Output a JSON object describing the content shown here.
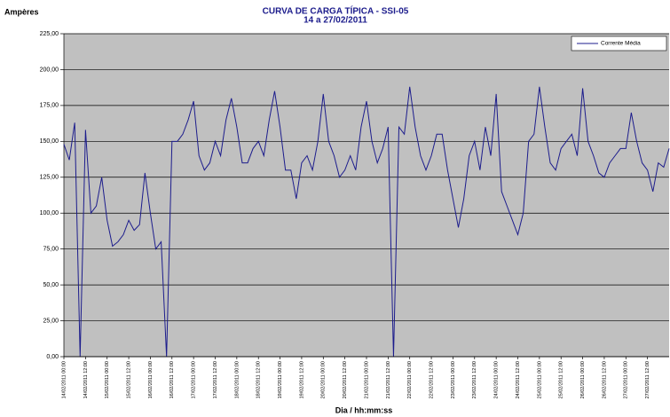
{
  "chart_data": {
    "type": "line",
    "title": "CURVA DE CARGA TÍPICA - SSI-05",
    "subtitle": "14 a 27/02/2011",
    "y_label": "Ampères",
    "x_label": "Dia / hh:mm:ss",
    "legend_position": "top-right",
    "grid": true,
    "background": "#c0c0c0",
    "categories": [
      "14/02/2011 00:00",
      null,
      null,
      null,
      "14/02/2011 12:00",
      null,
      null,
      null,
      "15/02/2011 00:00",
      null,
      null,
      null,
      "15/02/2011 12:00",
      null,
      null,
      null,
      "16/02/2011 00:00",
      null,
      null,
      null,
      "16/02/2011 12:00",
      null,
      null,
      null,
      "17/02/2011 00:00",
      null,
      null,
      null,
      "17/02/2011 12:00",
      null,
      null,
      null,
      "18/02/2011 00:00",
      null,
      null,
      null,
      "18/02/2011 12:00",
      null,
      null,
      null,
      "19/02/2011 00:00",
      null,
      null,
      null,
      "19/02/2011 12:00",
      null,
      null,
      null,
      "20/02/2011 00:00",
      null,
      null,
      null,
      "20/02/2011 12:00",
      null,
      null,
      null,
      "21/02/2011 00:00",
      null,
      null,
      null,
      "21/02/2011 12:00",
      null,
      null,
      null,
      "22/02/2011 00:00",
      null,
      null,
      null,
      "22/02/2011 12:00",
      null,
      null,
      null,
      "23/02/2011 00:00",
      null,
      null,
      null,
      "23/02/2011 12:00",
      null,
      null,
      null,
      "24/02/2011 00:00",
      null,
      null,
      null,
      "24/02/2011 12:00",
      null,
      null,
      null,
      "25/02/2011 00:00",
      null,
      null,
      null,
      "25/02/2011 12:00",
      null,
      null,
      null,
      "26/02/2011 00:00",
      null,
      null,
      null,
      "26/02/2011 12:00",
      null,
      null,
      null,
      "27/02/2011 00:00",
      null,
      null,
      null,
      "27/02/2011 12:00",
      null,
      null,
      null,
      null
    ],
    "series": [
      {
        "name": "Corrente Média",
        "color": "#1c1c8c",
        "values": [
          148,
          137,
          163,
          0,
          158,
          100,
          105,
          125,
          95,
          77,
          80,
          85,
          95,
          88,
          92,
          128,
          100,
          75,
          80,
          0,
          150,
          150,
          155,
          165,
          178,
          140,
          130,
          135,
          150,
          140,
          165,
          180,
          160,
          135,
          135,
          145,
          150,
          140,
          165,
          185,
          160,
          130,
          130,
          110,
          135,
          140,
          130,
          150,
          183,
          150,
          140,
          125,
          130,
          140,
          130,
          160,
          178,
          150,
          135,
          145,
          160,
          0,
          160,
          155,
          188,
          160,
          140,
          130,
          140,
          155,
          155,
          130,
          110,
          90,
          110,
          140,
          150,
          130,
          160,
          140,
          183,
          115,
          105,
          95,
          85,
          100,
          150,
          155,
          188,
          160,
          135,
          130,
          145,
          150,
          155,
          140,
          187,
          150,
          140,
          128,
          125,
          135,
          140,
          145,
          145,
          170,
          150,
          135,
          130,
          115,
          135,
          132,
          145
        ]
      }
    ],
    "ylim": [
      0,
      225
    ],
    "yticks": [
      {
        "value": 0,
        "label": "0,00"
      },
      {
        "value": 25,
        "label": "25,00"
      },
      {
        "value": 50,
        "label": "50,00"
      },
      {
        "value": 75,
        "label": "75,00"
      },
      {
        "value": 100,
        "label": "100,00"
      },
      {
        "value": 125,
        "label": "125,00"
      },
      {
        "value": 150,
        "label": "150,00"
      },
      {
        "value": 175,
        "label": "175,00"
      },
      {
        "value": 200,
        "label": "200,00"
      },
      {
        "value": 225,
        "label": "225,00"
      }
    ]
  }
}
